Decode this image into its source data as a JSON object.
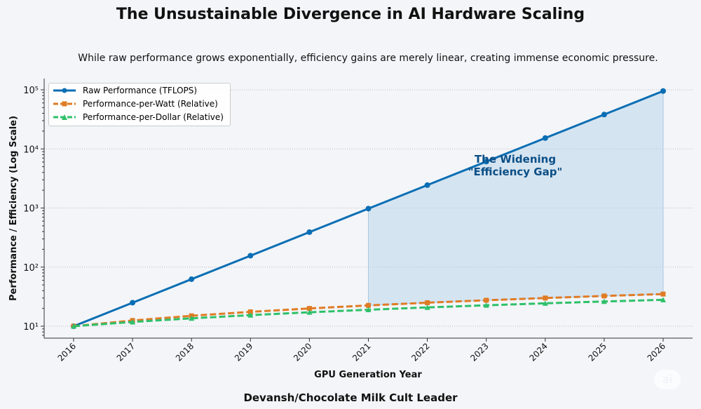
{
  "header": {
    "title": "The Unsustainable Divergence in AI Hardware Scaling",
    "subtitle": "While raw performance grows exponentially, efficiency gains are merely linear, creating immense economic pressure."
  },
  "footer": {
    "credit": "Devansh/Chocolate Milk Cult Leader"
  },
  "chart_data": {
    "type": "line",
    "title": "The Unsustainable Divergence in AI Hardware Scaling",
    "xlabel": "GPU Generation Year",
    "ylabel": "Performance / Efficiency (Log Scale)",
    "yscale": "log",
    "ylim": [
      6.3,
      155000
    ],
    "x": [
      2016,
      2017,
      2018,
      2019,
      2020,
      2021,
      2022,
      2023,
      2024,
      2025,
      2026
    ],
    "yticks": [
      10,
      100,
      1000,
      10000,
      100000
    ],
    "ytick_labels": [
      "10¹",
      "10²",
      "10³",
      "10⁴",
      "10⁵"
    ],
    "grid": "horizontal dotted",
    "legend_position": "top-left",
    "series": [
      {
        "name": "Raw Performance (TFLOPS)",
        "color": "#0a6eb4",
        "marker": "circle",
        "dash": "solid",
        "values": [
          10,
          25,
          62.5,
          156,
          391,
          977,
          2441,
          6104,
          15259,
          38147,
          95367
        ]
      },
      {
        "name": "Performance-per-Watt (Relative)",
        "color": "#e07b24",
        "marker": "square",
        "dash": "dashed",
        "values": [
          10,
          12.5,
          15,
          17.5,
          20,
          22.5,
          25,
          27.5,
          30,
          32.5,
          35
        ]
      },
      {
        "name": "Performance-per-Dollar (Relative)",
        "color": "#2ec06a",
        "marker": "triangle",
        "dash": "dashed",
        "values": [
          10,
          11.8,
          13.6,
          15.4,
          17.2,
          19,
          20.8,
          22.6,
          24.4,
          26.2,
          28
        ]
      }
    ],
    "shaded_region": {
      "from_x": 2021,
      "to_x": 2026,
      "between": [
        "Raw Performance (TFLOPS)",
        "Performance-per-Watt (Relative)"
      ],
      "color": "#b8d4ea"
    },
    "annotation": {
      "text_line1": "The Widening",
      "text_line2": "\"Efficiency Gap\"",
      "x": 2023.5,
      "y": 5000,
      "color": "#0b4f86"
    }
  },
  "watermark": "ai"
}
